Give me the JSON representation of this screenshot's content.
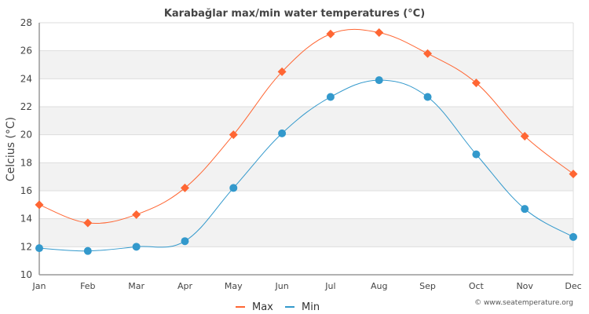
{
  "chart_data": {
    "type": "line",
    "title": "Karabağlar max/min water temperatures (°C)",
    "xlabel": "",
    "ylabel": "Celcius (°C)",
    "categories": [
      "Jan",
      "Feb",
      "Mar",
      "Apr",
      "May",
      "Jun",
      "Jul",
      "Aug",
      "Sep",
      "Oct",
      "Nov",
      "Dec"
    ],
    "ylim": [
      10,
      28
    ],
    "yticks": [
      10,
      12,
      14,
      16,
      18,
      20,
      22,
      24,
      26,
      28
    ],
    "grid": true,
    "legend_position": "bottom-center",
    "series": [
      {
        "name": "Max",
        "color": "#ff6633",
        "marker": "diamond",
        "values": [
          15.0,
          13.7,
          14.3,
          16.2,
          20.0,
          24.5,
          27.2,
          27.3,
          25.8,
          23.7,
          19.9,
          17.2
        ]
      },
      {
        "name": "Min",
        "color": "#3399cc",
        "marker": "circle",
        "values": [
          11.9,
          11.7,
          12.0,
          12.4,
          16.2,
          20.1,
          22.7,
          23.9,
          22.7,
          18.6,
          14.7,
          12.7
        ]
      }
    ],
    "credit": "© www.seatemperature.org"
  }
}
